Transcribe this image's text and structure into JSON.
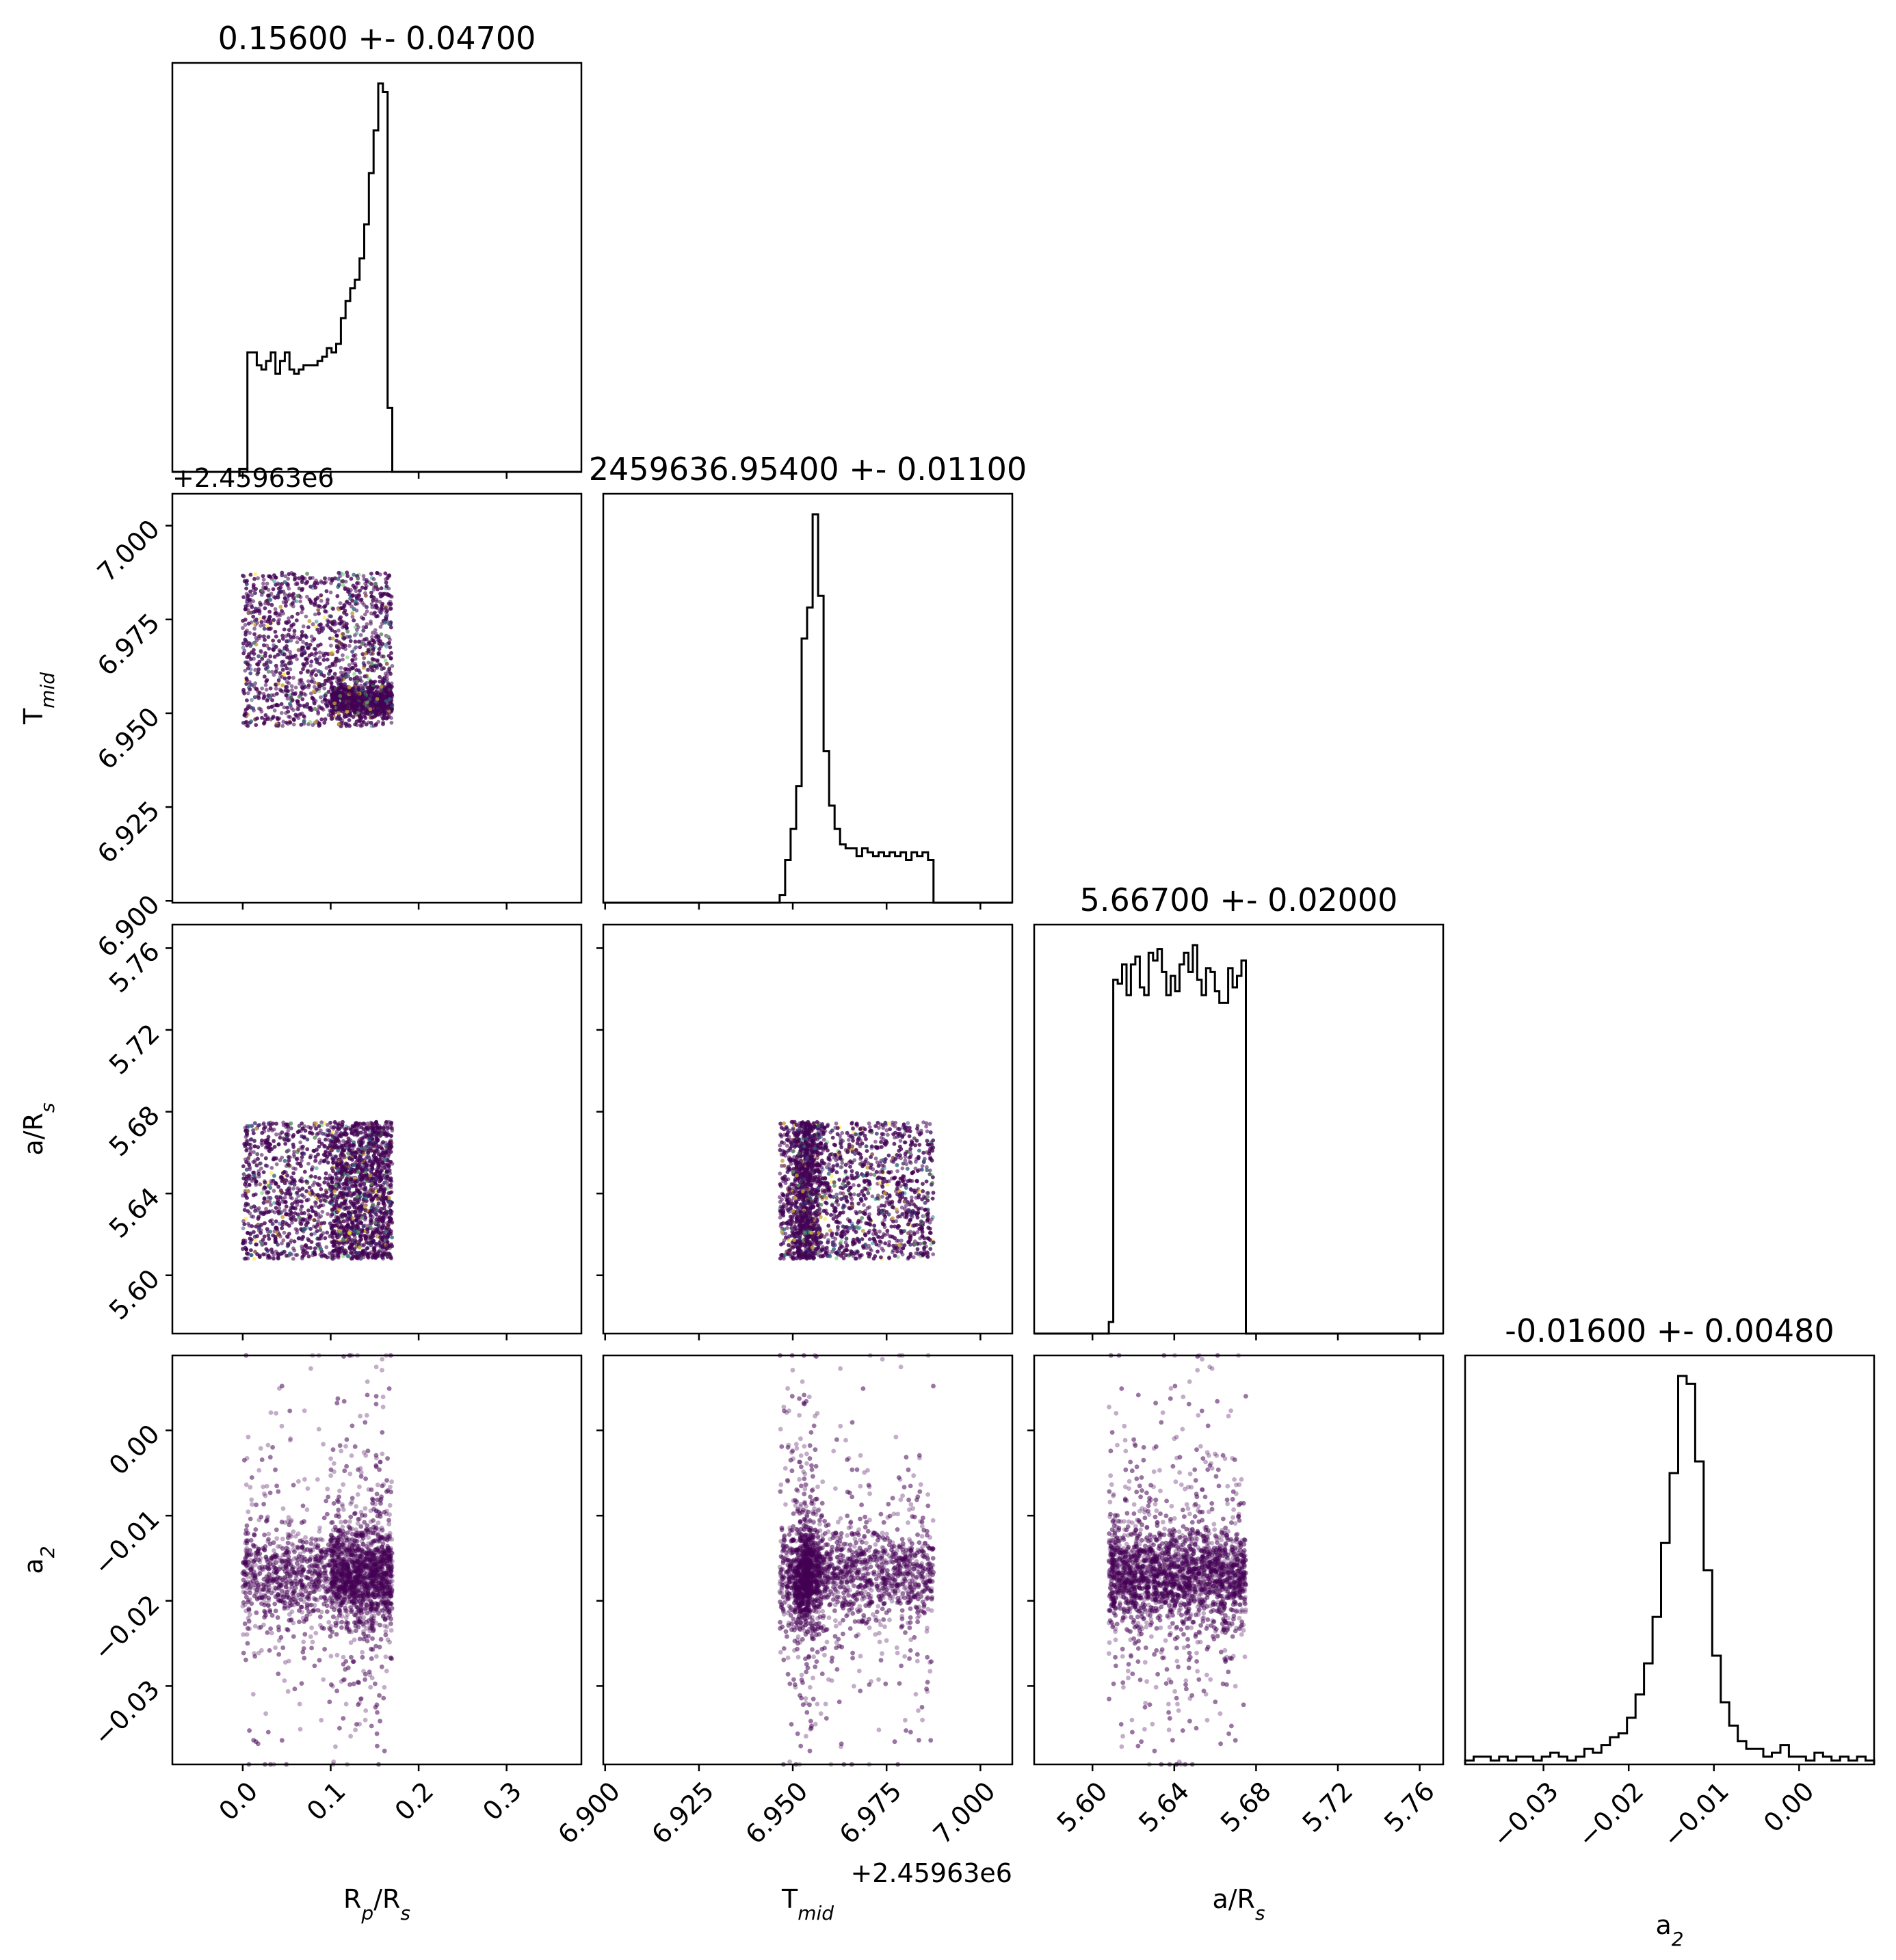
{
  "colors": {
    "histogram": "#000000",
    "scatter": "#440154",
    "scatter_speckle": [
      "#21918c",
      "#5ec962",
      "#fde725",
      "#3b528b"
    ],
    "frame": "#000000"
  },
  "chart_data": {
    "type": "scatter",
    "layout": "corner-plot",
    "parameters": [
      {
        "label_main": "R",
        "label_sub": "p",
        "label_rest": "/R",
        "label_sub2": "s",
        "range": [
          -0.08,
          0.385
        ],
        "ticks": [
          "0.0",
          "0.1",
          "0.2",
          "0.3"
        ],
        "tick_values": [
          0,
          0.1,
          0.2,
          0.3
        ],
        "title": "0.15600 +- 0.04700"
      },
      {
        "label_main": "T",
        "label_sub": "mid",
        "range": [
          6.8995,
          7.0085
        ],
        "ticks": [
          "6.900",
          "6.925",
          "6.950",
          "6.975",
          "7.000"
        ],
        "tick_values": [
          6.9,
          6.925,
          6.95,
          6.975,
          7.0
        ],
        "offset": "+2.45963e6",
        "title": "2459636.95400 +- 0.01100"
      },
      {
        "label_main": "a/R",
        "label_sub": "s",
        "range": [
          5.5715,
          5.7715
        ],
        "ticks": [
          "5.60",
          "5.64",
          "5.68",
          "5.72",
          "5.76"
        ],
        "tick_values": [
          5.6,
          5.64,
          5.68,
          5.72,
          5.76
        ],
        "title": "5.66700 +- 0.02000"
      },
      {
        "label_main": "a",
        "label_sub": "2",
        "range": [
          -0.0392,
          0.0088
        ],
        "ticks": [
          "−0.03",
          "−0.02",
          "−0.01",
          "0.00"
        ],
        "tick_values": [
          -0.03,
          -0.02,
          -0.01,
          0.0
        ],
        "title": "-0.01600 +- 0.00480"
      }
    ],
    "histograms": [
      {
        "param": 0,
        "edges": [
          0.0,
          0.17
        ],
        "counts": [
          0,
          28,
          28,
          25,
          24,
          26,
          28,
          23,
          26,
          28,
          24,
          23,
          24,
          25,
          25,
          25,
          26,
          27,
          29,
          28,
          30,
          36,
          40,
          43,
          45,
          50,
          58,
          70,
          80,
          91,
          89,
          15
        ]
      },
      {
        "param": 1,
        "edges": [
          6.9465,
          6.9875
        ],
        "counts": [
          2,
          11,
          19,
          30,
          68,
          76,
          100,
          79,
          39,
          25,
          19,
          15,
          14,
          14,
          12,
          14,
          13,
          12,
          13,
          12,
          13,
          12,
          13,
          11,
          13,
          12,
          13,
          11
        ]
      },
      {
        "param": 2,
        "edges": [
          5.608,
          5.675
        ],
        "counts": [
          3,
          92,
          91,
          96,
          88,
          96,
          98,
          90,
          88,
          99,
          97,
          100,
          94,
          88,
          93,
          89,
          96,
          99,
          94,
          101,
          92,
          88,
          95,
          94,
          89,
          86,
          86,
          95,
          90,
          93,
          97
        ]
      },
      {
        "param": 3,
        "edges": [
          -0.0392,
          0.0088
        ],
        "counts": [
          1,
          2,
          2,
          1,
          2,
          1,
          2,
          2,
          1,
          2,
          3,
          2,
          1,
          2,
          4,
          3,
          5,
          7,
          8,
          12,
          18,
          26,
          38,
          57,
          75,
          100,
          98,
          78,
          50,
          28,
          16,
          10,
          6,
          4,
          4,
          2,
          3,
          5,
          2,
          2,
          1,
          3,
          2,
          1,
          2,
          1,
          2,
          1
        ]
      }
    ],
    "pairs": [
      {
        "x": 0,
        "y": 1,
        "x_range": [
          0.0,
          0.17
        ],
        "y_range": [
          6.9465,
          6.9875
        ],
        "note": "dense cluster near R_p/R_s 0.10-0.17, T_mid 6.950-6.958"
      },
      {
        "x": 0,
        "y": 2,
        "x_range": [
          0.0,
          0.17
        ],
        "y_range": [
          5.608,
          5.675
        ]
      },
      {
        "x": 1,
        "y": 2,
        "x_range": [
          6.9465,
          6.9875
        ],
        "y_range": [
          5.608,
          5.675
        ],
        "note": "dense band near T_mid 6.948-6.956"
      },
      {
        "x": 0,
        "y": 3,
        "x_range": [
          0.0,
          0.17
        ],
        "y_range": [
          -0.0392,
          0.0088
        ],
        "center_y": -0.017
      },
      {
        "x": 1,
        "y": 3,
        "x_range": [
          6.9465,
          6.9875
        ],
        "y_range": [
          -0.0392,
          0.0088
        ],
        "center_x": 6.953,
        "center_y": -0.017
      },
      {
        "x": 2,
        "y": 3,
        "x_range": [
          5.608,
          5.675
        ],
        "y_range": [
          -0.0392,
          0.0088
        ],
        "center_y": -0.017
      }
    ]
  }
}
